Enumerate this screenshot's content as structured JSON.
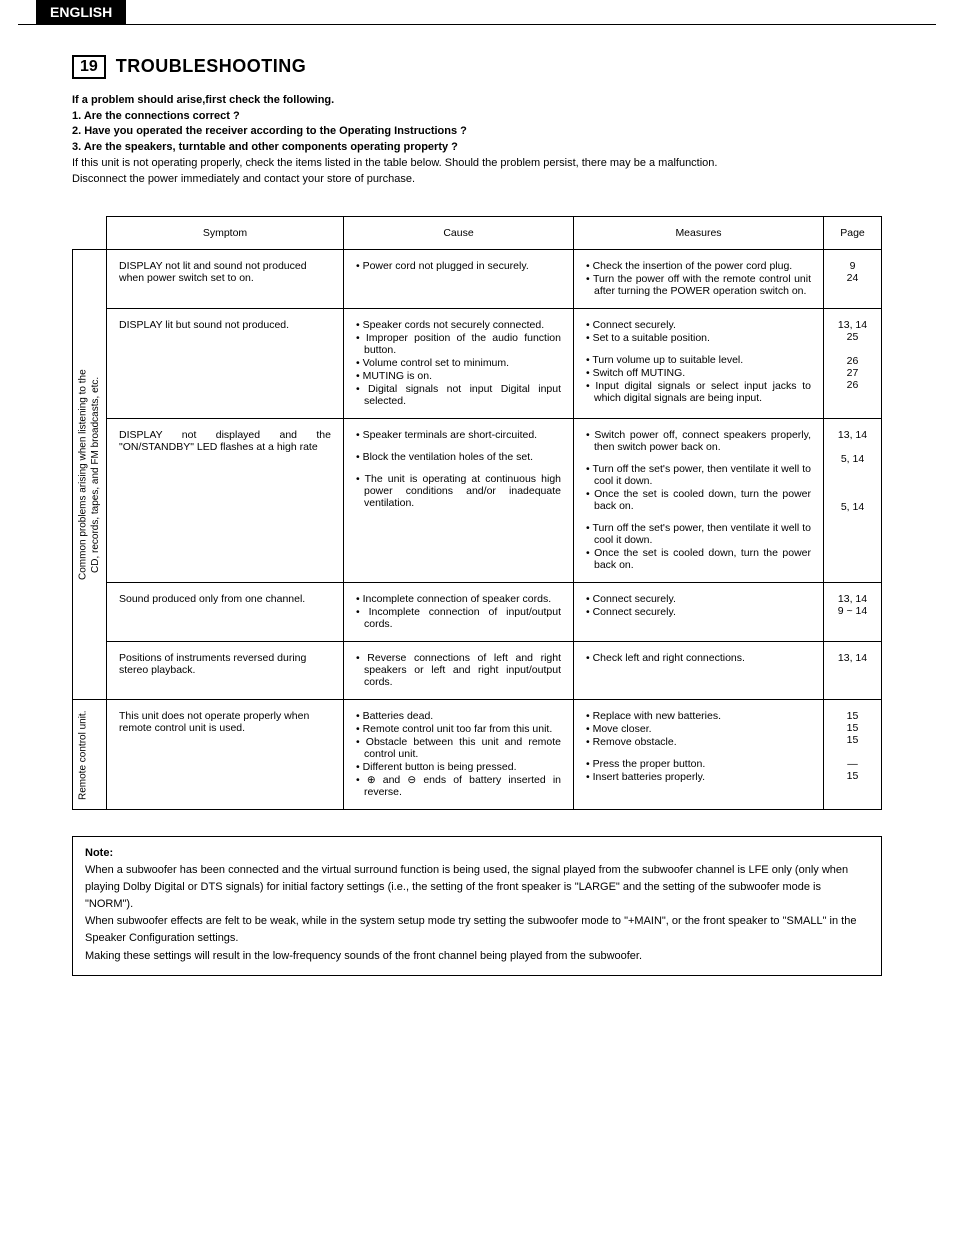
{
  "lang_tab": "ENGLISH",
  "section": {
    "number": "19",
    "title": "TROUBLESHOOTING"
  },
  "intro": {
    "lead": "If a problem should arise,first check the following.",
    "q1": "1.  Are the connections correct ?",
    "q2": "2.  Have you operated the receiver according to the Operating Instructions ?",
    "q3": "3.  Are the speakers, turntable and other components operating property ?",
    "note_line1": "If this unit is not operating properly, check the items listed in the table below. Should the problem persist, there may be a malfunction.",
    "note_line2": "Disconnect the power immediately and contact your store of purchase."
  },
  "table": {
    "headers": {
      "symptom": "Symptom",
      "cause": "Cause",
      "measures": "Measures",
      "page": "Page"
    },
    "categories": [
      {
        "label": "Common problems arising when listening to the\nCD, records, tapes, and FM broadcasts, etc.",
        "rows": [
          {
            "symptom": "DISPLAY not lit and sound not produced when power switch set to on.",
            "causes": [
              "Power cord not plugged in securely."
            ],
            "measures": [
              "Check the insertion of the power cord plug.",
              "Turn the power off with the remote control unit after turning the POWER operation switch on."
            ],
            "page": "9\n24"
          },
          {
            "symptom": "DISPLAY lit but sound not produced.",
            "causes": [
              "Speaker cords not securely connected.",
              "Improper position of the audio function button.",
              "Volume control set to minimum.",
              "MUTING is on.",
              "Digital signals not input Digital input selected."
            ],
            "measures": [
              "Connect securely.",
              "Set to a suitable position.",
              "Turn volume up to suitable level.",
              "Switch off MUTING.",
              "Input digital signals or select input jacks to which digital signals are being input."
            ],
            "page": "13, 14\n25\n \n26\n27\n26",
            "measures_gap_after": 1
          },
          {
            "symptom": "DISPLAY not displayed and the \"ON/STANDBY\" LED flashes at a high rate",
            "symptom_justify": true,
            "causes_blocks": [
              [
                "Speaker terminals are short-circuited."
              ],
              [
                "Block the ventilation holes of the set."
              ],
              [
                "The unit is operating at continuous high power conditions and/or inadequate ventilation."
              ]
            ],
            "measures_blocks": [
              [
                "Switch power off, connect speakers properly, then switch power back on."
              ],
              [
                "Turn off the set's power, then ventilate it well to cool it down.",
                "Once the set is cooled down, turn the power back on."
              ],
              [
                "Turn off the set's power, then ventilate it well to cool it down.",
                "Once the set is cooled down, turn the power back on."
              ]
            ],
            "page": "13, 14\n \n5, 14\n \n \n \n5, 14"
          },
          {
            "symptom": "Sound produced only from one channel.",
            "causes": [
              "Incomplete connection of speaker cords.",
              "Incomplete connection of input/output cords."
            ],
            "measures": [
              "Connect securely.",
              "Connect securely."
            ],
            "page": "13, 14\n9 ~ 14"
          },
          {
            "symptom": "Positions of instruments reversed during stereo playback.",
            "causes": [
              "Reverse connections of left and right speakers or left and right input/output cords."
            ],
            "measures": [
              "Check left and right connections."
            ],
            "page": "13, 14"
          }
        ]
      },
      {
        "label": "Remote control unit.",
        "rows": [
          {
            "symptom": "This unit does not operate properly when remote control unit is used.",
            "causes": [
              "Batteries dead.",
              "Remote control unit too far from this unit.",
              "Obstacle between this unit and remote control unit.",
              "Different button is being pressed.",
              "⊕ and ⊖ ends of battery inserted in reverse."
            ],
            "measures": [
              "Replace with new batteries.",
              "Move closer.",
              "Remove obstacle.",
              "Press the proper button.",
              "Insert batteries properly."
            ],
            "measures_gap_after": 2,
            "page": "15\n15\n15\n \n—\n15"
          }
        ]
      }
    ]
  },
  "note": {
    "title": "Note:",
    "p1": "When a subwoofer has been connected and the virtual surround function is being used, the signal played from the subwoofer channel is LFE only (only when playing Dolby Digital or DTS signals) for initial factory settings (i.e., the setting of the front speaker is \"LARGE\" and the setting of the subwoofer mode is \"NORM\").",
    "p2": "When subwoofer effects are felt to be weak, while in the system setup mode try setting the subwoofer mode to \"+MAIN\", or the front speaker to \"SMALL\" in the Speaker Configuration settings.",
    "p3": "Making these settings will result in the low-frequency sounds of the front channel being played from the subwoofer."
  }
}
